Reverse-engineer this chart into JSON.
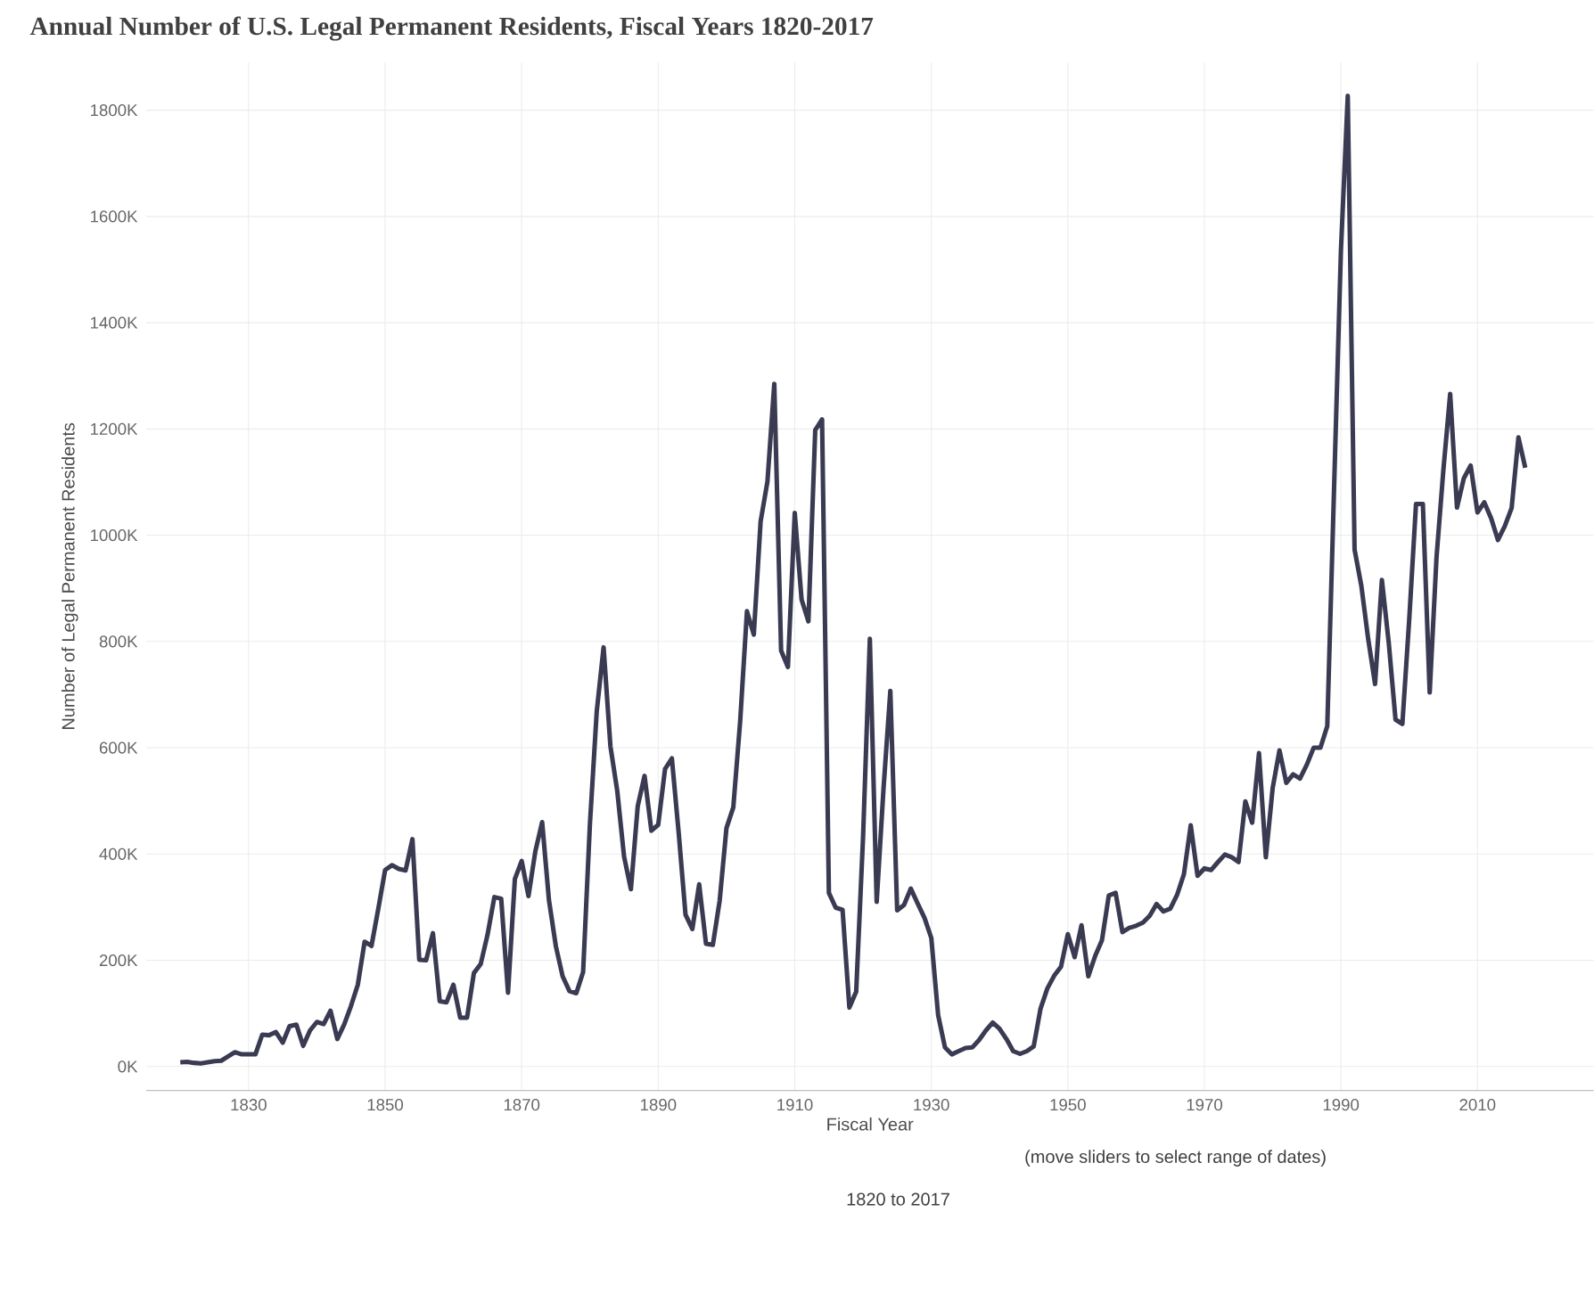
{
  "chart_data": {
    "type": "line",
    "title": "Annual Number of U.S. Legal Permanent Residents, Fiscal Years 1820-2017",
    "xlabel": "Fiscal Year",
    "ylabel": "Number of Legal Permanent Residents",
    "annotations": [
      "(move sliders to select range of dates)",
      "1820 to 2017"
    ],
    "x": [
      1820,
      1821,
      1822,
      1823,
      1824,
      1825,
      1826,
      1827,
      1828,
      1829,
      1830,
      1831,
      1832,
      1833,
      1834,
      1835,
      1836,
      1837,
      1838,
      1839,
      1840,
      1841,
      1842,
      1843,
      1844,
      1845,
      1846,
      1847,
      1848,
      1849,
      1850,
      1851,
      1852,
      1853,
      1854,
      1855,
      1856,
      1857,
      1858,
      1859,
      1860,
      1861,
      1862,
      1863,
      1864,
      1865,
      1866,
      1867,
      1868,
      1869,
      1870,
      1871,
      1872,
      1873,
      1874,
      1875,
      1876,
      1877,
      1878,
      1879,
      1880,
      1881,
      1882,
      1883,
      1884,
      1885,
      1886,
      1887,
      1888,
      1889,
      1890,
      1891,
      1892,
      1893,
      1894,
      1895,
      1896,
      1897,
      1898,
      1899,
      1900,
      1901,
      1902,
      1903,
      1904,
      1905,
      1906,
      1907,
      1908,
      1909,
      1910,
      1911,
      1912,
      1913,
      1914,
      1915,
      1916,
      1917,
      1918,
      1919,
      1920,
      1921,
      1922,
      1923,
      1924,
      1925,
      1926,
      1927,
      1928,
      1929,
      1930,
      1931,
      1932,
      1933,
      1934,
      1935,
      1936,
      1937,
      1938,
      1939,
      1940,
      1941,
      1942,
      1943,
      1944,
      1945,
      1946,
      1947,
      1948,
      1949,
      1950,
      1951,
      1952,
      1953,
      1954,
      1955,
      1956,
      1957,
      1958,
      1959,
      1960,
      1961,
      1962,
      1963,
      1964,
      1965,
      1966,
      1967,
      1968,
      1969,
      1970,
      1971,
      1972,
      1973,
      1974,
      1975,
      1976,
      1977,
      1978,
      1979,
      1980,
      1981,
      1982,
      1983,
      1984,
      1985,
      1986,
      1987,
      1988,
      1989,
      1990,
      1991,
      1992,
      1993,
      1994,
      1995,
      1996,
      1997,
      1998,
      1999,
      2000,
      2001,
      2002,
      2003,
      2004,
      2005,
      2006,
      2007,
      2008,
      2009,
      2010,
      2011,
      2012,
      2013,
      2014,
      2015,
      2016,
      2017
    ],
    "series": [
      {
        "color": "#3a3a52",
        "values": [
          8000,
          9000,
          7000,
          6000,
          8000,
          10000,
          11000,
          19000,
          27000,
          23000,
          23000,
          23000,
          60000,
          59000,
          65000,
          45000,
          76000,
          79000,
          39000,
          68000,
          84000,
          80000,
          105000,
          52000,
          79000,
          114000,
          154000,
          235000,
          227000,
          297000,
          370000,
          379000,
          372000,
          369000,
          428000,
          201000,
          200000,
          251000,
          123000,
          121000,
          154000,
          92000,
          92000,
          176000,
          193000,
          248000,
          319000,
          316000,
          139000,
          353000,
          387000,
          321000,
          405000,
          460000,
          313000,
          227000,
          170000,
          142000,
          138000,
          178000,
          457000,
          669000,
          789000,
          603000,
          519000,
          395000,
          334000,
          490000,
          547000,
          444000,
          455000,
          560000,
          580000,
          440000,
          286000,
          259000,
          343000,
          231000,
          229000,
          312000,
          449000,
          488000,
          649000,
          857000,
          813000,
          1026000,
          1101000,
          1285000,
          783000,
          752000,
          1042000,
          879000,
          838000,
          1198000,
          1218000,
          327000,
          299000,
          295000,
          111000,
          141000,
          430000,
          805000,
          310000,
          523000,
          707000,
          294000,
          304000,
          335000,
          307000,
          280000,
          242000,
          97000,
          36000,
          23000,
          29000,
          35000,
          36000,
          50000,
          68000,
          83000,
          71000,
          52000,
          29000,
          24000,
          29000,
          38000,
          109000,
          147000,
          171000,
          188000,
          249000,
          206000,
          266000,
          170000,
          208000,
          238000,
          322000,
          327000,
          253000,
          261000,
          265000,
          271000,
          284000,
          306000,
          292000,
          297000,
          323000,
          362000,
          454000,
          359000,
          373000,
          370000,
          385000,
          399000,
          394000,
          385000,
          499000,
          459000,
          590000,
          394000,
          524000,
          595000,
          534000,
          550000,
          542000,
          568000,
          600000,
          600000,
          641000,
          1090000,
          1536000,
          1827000,
          973000,
          904000,
          804000,
          720000,
          916000,
          798000,
          653000,
          645000,
          841000,
          1059000,
          1059000,
          704000,
          958000,
          1122000,
          1266000,
          1052000,
          1107000,
          1131000,
          1043000,
          1062000,
          1032000,
          991000,
          1017000,
          1051000,
          1184000,
          1127000
        ]
      }
    ],
    "xlim": [
      1815,
      2027
    ],
    "ylim": [
      -45000,
      1890000
    ],
    "xticks": [
      1830,
      1850,
      1870,
      1890,
      1910,
      1930,
      1950,
      1970,
      1990,
      2010
    ],
    "yticks": [
      {
        "value": 0,
        "label": "0K"
      },
      {
        "value": 200000,
        "label": "200K"
      },
      {
        "value": 400000,
        "label": "400K"
      },
      {
        "value": 600000,
        "label": "600K"
      },
      {
        "value": 800000,
        "label": "800K"
      },
      {
        "value": 1000000,
        "label": "1000K"
      },
      {
        "value": 1200000,
        "label": "1200K"
      },
      {
        "value": 1400000,
        "label": "1400K"
      },
      {
        "value": 1600000,
        "label": "1600K"
      },
      {
        "value": 1800000,
        "label": "1800K"
      }
    ],
    "grid": true,
    "marker": "none"
  }
}
